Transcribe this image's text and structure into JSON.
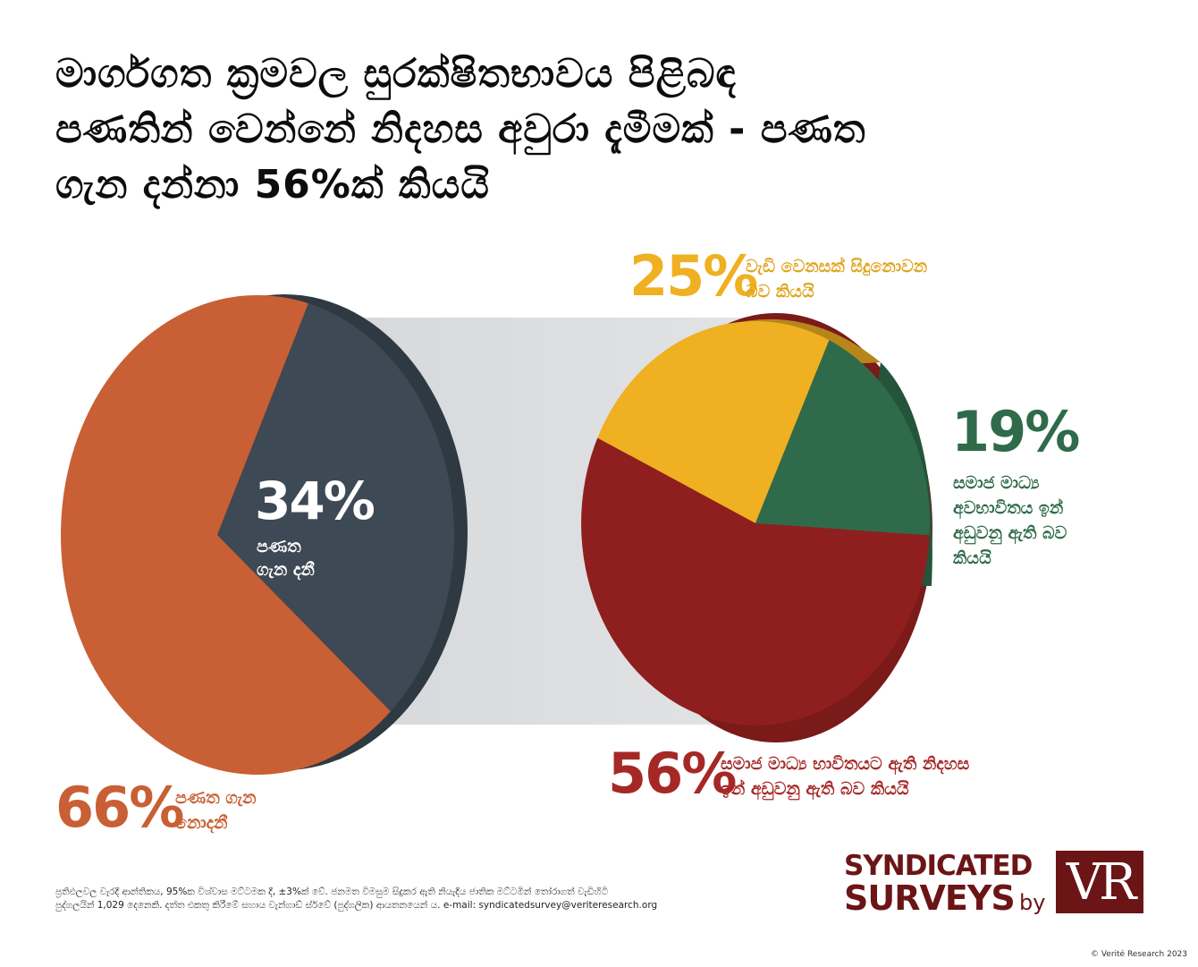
{
  "title_lines": [
    "මාර්ගගත ක්‍රමවල සුරක්ෂිතභාවය පිළිබඳ",
    "පණතින් වෙන්නේ නිදහස අවුරා දැමීමක් - පණත",
    "ගැන දන්නා 56%ක් කියයි"
  ],
  "colors": {
    "orange": "#c95f34",
    "slate": "#3d4954",
    "yellow": "#efb021",
    "green": "#2f6b4a",
    "red": "#8f1f1e",
    "grey_band": "#dadcde",
    "maroon": "#6b1516"
  },
  "chart_data": [
    {
      "type": "pie",
      "slices": [
        {
          "pct_label": "66%",
          "value": 66,
          "label_lines": [
            "පණත ගැන",
            "නොදනී"
          ],
          "color": "#c95f34"
        },
        {
          "pct_label": "34%",
          "value": 34,
          "label_lines": [
            "පණත",
            "ගැන දනී"
          ],
          "color": "#3d4954"
        }
      ]
    },
    {
      "type": "pie",
      "slices": [
        {
          "pct_label": "25%",
          "value": 25,
          "label_lines": [
            "වැඩි වෙනසක් සිදුනොවන",
            "බව කියයි"
          ],
          "color": "#efb021"
        },
        {
          "pct_label": "19%",
          "value": 19,
          "label_lines": [
            "සමාජ මාධ්‍ය",
            "අවභාවිතය ඉන්",
            "අඩුවනු ඇති බව",
            "කියයි"
          ],
          "color": "#2f6b4a"
        },
        {
          "pct_label": "56%",
          "value": 56,
          "label_lines": [
            "සමාජ මාධ්‍ය භාවිතයට ඇති නිදහස",
            "ඉන් අඩුවනු ඇති බව කියයි"
          ],
          "color": "#8f1f1e"
        }
      ]
    }
  ],
  "footnote_lines": [
    "ප්‍රතිඵලවල වැරදි ආන්තිකය, 95%ක විශ්වාස මට්ටමක දී, ±3%ක් වේ. ජනමත විමසුම සිදුකර ඇති නියැදිය ජාතික මට්ටමින් තෝරාගත් වැඩිහිටි",
    "පුද්ගලයින් 1,029 දෙනෙකි. දත්ත එකතු කිරීමේ සහාය වැන්ගාඩ් ස්ර්වේ (පුද්ගලික) ආයතනයෙන් ය. e-mail: syndicatedsurvey@veriteresearch.org"
  ],
  "logo": {
    "line1": "SYNDICATED",
    "line2": "SURVEYS",
    "by": "by",
    "mark": "VR"
  },
  "copyright": "© Verité Research 2023"
}
